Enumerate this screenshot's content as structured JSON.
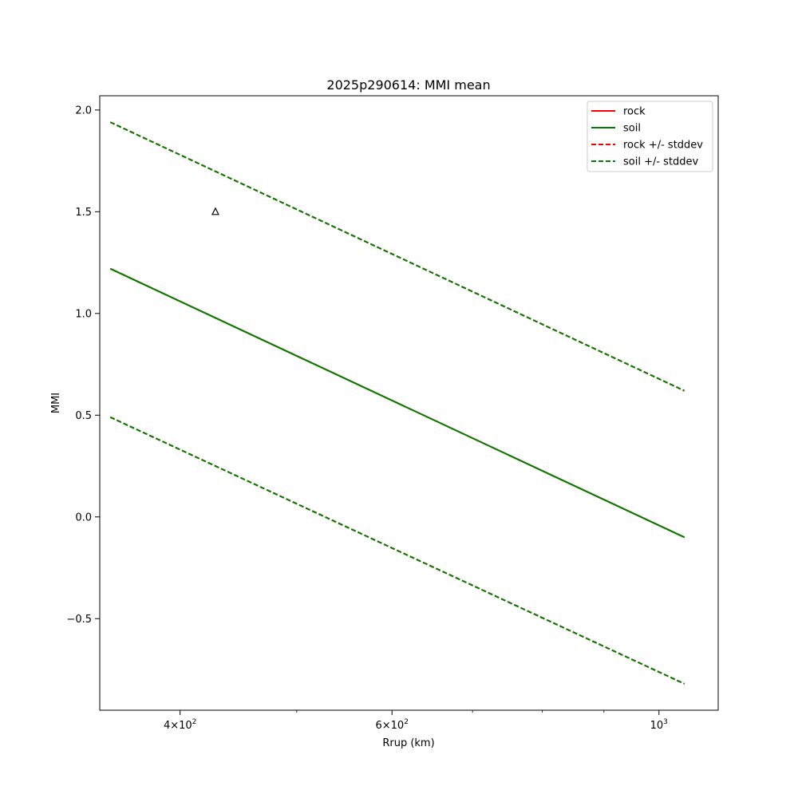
{
  "chart_data": {
    "type": "line",
    "title": "2025p290614: MMI mean",
    "xlabel": "Rrup (km)",
    "ylabel": "MMI",
    "x_scale": "log",
    "xlim": [
      343,
      1120
    ],
    "ylim": [
      -0.95,
      2.07
    ],
    "x_ticks_major": [
      {
        "value": 400,
        "base": "4×10",
        "exp": "2"
      },
      {
        "value": 600,
        "base": "6×10",
        "exp": "2"
      },
      {
        "value": 1000,
        "base": "10",
        "exp": "3"
      }
    ],
    "x_ticks_minor": [
      500,
      700,
      800,
      900
    ],
    "y_ticks": [
      {
        "value": -0.5,
        "label": "−0.5"
      },
      {
        "value": 0.0,
        "label": "0.0"
      },
      {
        "value": 0.5,
        "label": "0.5"
      },
      {
        "value": 1.0,
        "label": "1.0"
      },
      {
        "value": 1.5,
        "label": "1.5"
      },
      {
        "value": 2.0,
        "label": "2.0"
      }
    ],
    "grid": false,
    "legend_position": "top-right",
    "series": [
      {
        "name": "rock",
        "color": "#ff0000",
        "style": "solid",
        "x": [
          350,
          1050
        ],
        "y": [
          1.22,
          -0.1
        ]
      },
      {
        "name": "soil",
        "color": "#007f00",
        "style": "solid",
        "x": [
          350,
          1050
        ],
        "y": [
          1.22,
          -0.1
        ]
      },
      {
        "name": "rock +/- stddev",
        "color": "#ff0000",
        "style": "dashed",
        "x": [
          350,
          1050
        ],
        "y": [
          1.94,
          0.62
        ],
        "y2": [
          0.49,
          -0.82
        ]
      },
      {
        "name": "soil +/- stddev",
        "color": "#007f00",
        "style": "dashed",
        "x": [
          350,
          1050
        ],
        "y": [
          1.94,
          0.62
        ],
        "y2": [
          0.49,
          -0.82
        ]
      }
    ],
    "observations": [
      {
        "x": 428,
        "y": 1.5,
        "marker": "triangle-open"
      }
    ]
  }
}
